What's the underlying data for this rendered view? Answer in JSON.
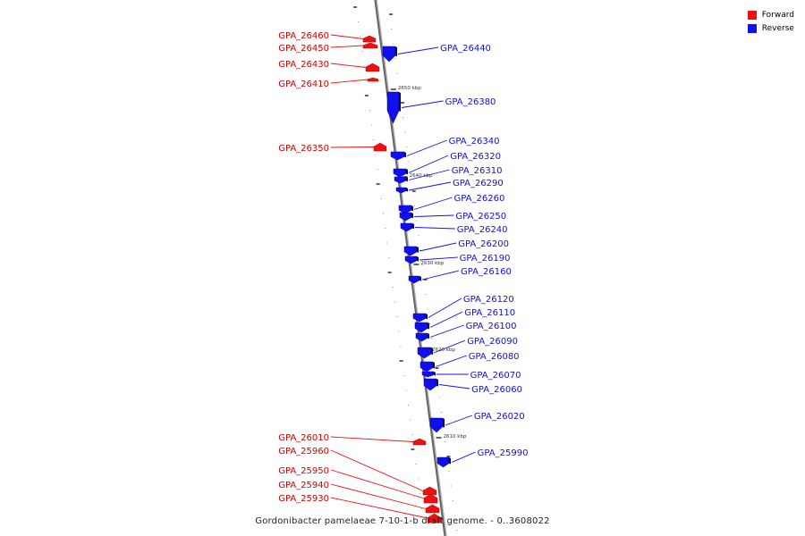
{
  "legend": {
    "forward_label": "Forward",
    "reverse_label": "Reverse",
    "forward_color": "#ee1111",
    "reverse_color": "#1010ee"
  },
  "caption": "Gordonibacter pamelaeae 7-10-1-b draft genome. - 0..3608022",
  "axis": {
    "unit": "kbp",
    "ticks": [
      {
        "label": "2650 kbp"
      },
      {
        "label": "2640 kbp"
      },
      {
        "label": "2630 kbp"
      },
      {
        "label": "2620 kbp"
      },
      {
        "label": "2610 kbp"
      }
    ]
  },
  "genes": {
    "forward": [
      {
        "name": "GPA_26460"
      },
      {
        "name": "GPA_26450"
      },
      {
        "name": "GPA_26430"
      },
      {
        "name": "GPA_26410"
      },
      {
        "name": "GPA_26350"
      },
      {
        "name": "GPA_26010"
      },
      {
        "name": "GPA_25960"
      },
      {
        "name": "GPA_25950"
      },
      {
        "name": "GPA_25940"
      },
      {
        "name": "GPA_25930"
      }
    ],
    "reverse": [
      {
        "name": "GPA_26440"
      },
      {
        "name": "GPA_26380"
      },
      {
        "name": "GPA_26340"
      },
      {
        "name": "GPA_26320"
      },
      {
        "name": "GPA_26310"
      },
      {
        "name": "GPA_26290"
      },
      {
        "name": "GPA_26260"
      },
      {
        "name": "GPA_26250"
      },
      {
        "name": "GPA_26240"
      },
      {
        "name": "GPA_26200"
      },
      {
        "name": "GPA_26190"
      },
      {
        "name": "GPA_26160"
      },
      {
        "name": "GPA_26120"
      },
      {
        "name": "GPA_26110"
      },
      {
        "name": "GPA_26100"
      },
      {
        "name": "GPA_26090"
      },
      {
        "name": "GPA_26080"
      },
      {
        "name": "GPA_26070"
      },
      {
        "name": "GPA_26060"
      },
      {
        "name": "GPA_26020"
      },
      {
        "name": "GPA_25990"
      }
    ]
  }
}
